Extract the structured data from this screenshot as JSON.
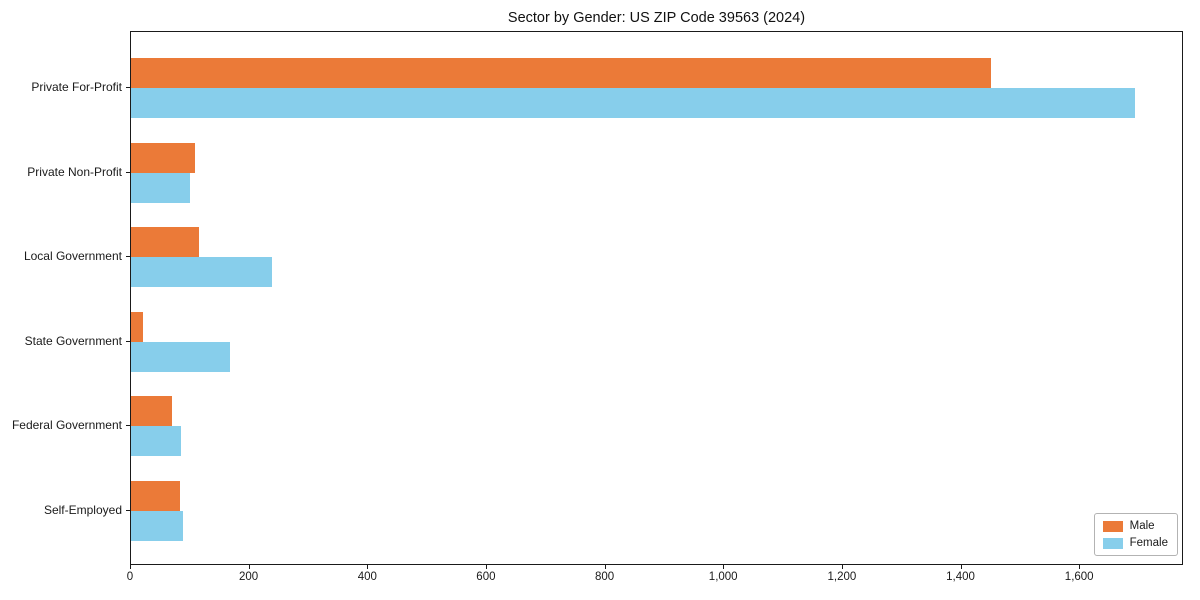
{
  "chart_data": {
    "type": "bar",
    "orientation": "horizontal",
    "title": "Sector by Gender: US ZIP Code 39563 (2024)",
    "categories": [
      "Private For-Profit",
      "Private Non-Profit",
      "Local Government",
      "State Government",
      "Federal Government",
      "Self-Employed"
    ],
    "series": [
      {
        "name": "Male",
        "color": "#EB7A38",
        "values": [
          1450,
          108,
          114,
          20,
          69,
          82
        ]
      },
      {
        "name": "Female",
        "color": "#87CEEB",
        "values": [
          1693,
          100,
          237,
          166,
          84,
          87
        ]
      }
    ],
    "xlabel": "",
    "ylabel": "",
    "xlim": [
      0,
      1775
    ],
    "xticks": [
      0,
      200,
      400,
      600,
      800,
      1000,
      1200,
      1400,
      1600
    ],
    "xtick_labels": [
      "0",
      "200",
      "400",
      "600",
      "800",
      "1,000",
      "1,200",
      "1,400",
      "1,600"
    ],
    "grid": false,
    "legend_position": "lower right"
  },
  "colors": {
    "axis": "#1a1a1a",
    "background": "#ffffff",
    "legend_border": "#b3b3b3"
  }
}
